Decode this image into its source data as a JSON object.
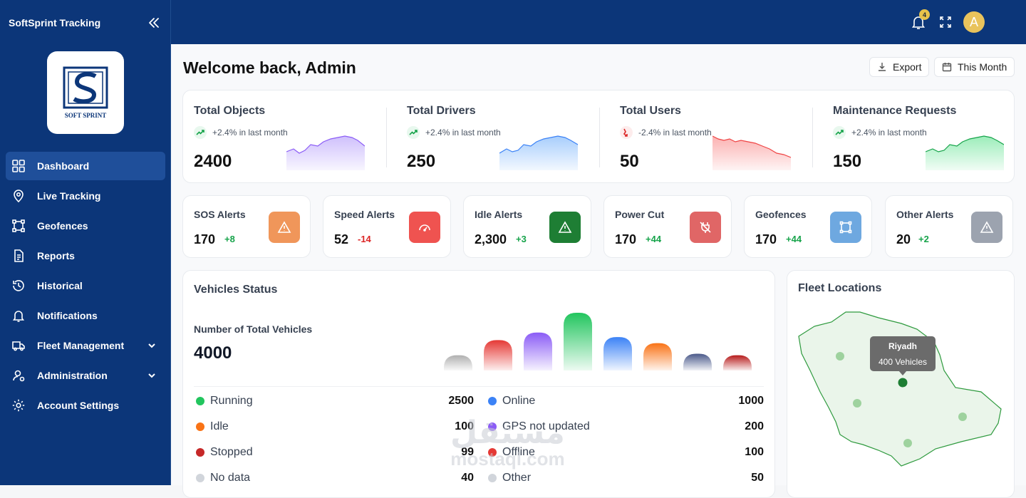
{
  "app": {
    "brand": "SoftSprint Tracking",
    "logo_text": "SOFT SPRINT"
  },
  "sidebar": {
    "items": [
      {
        "label": "Dashboard"
      },
      {
        "label": "Live Tracking"
      },
      {
        "label": "Geofences"
      },
      {
        "label": "Reports"
      },
      {
        "label": "Historical"
      },
      {
        "label": "Notifications"
      },
      {
        "label": "Fleet Management"
      },
      {
        "label": "Administration"
      },
      {
        "label": "Account Settings"
      }
    ]
  },
  "topbar": {
    "notification_count": "4",
    "avatar_initial": "A"
  },
  "header": {
    "welcome": "Welcome back, Admin",
    "export_label": "Export",
    "period_label": "This Month"
  },
  "stats": [
    {
      "title": "Total Objects",
      "trend": "+2.4% in last month",
      "value": "2400",
      "color": "#a78bfa",
      "direction": "up"
    },
    {
      "title": "Total Drivers",
      "trend": "+2.4% in last month",
      "value": "250",
      "color": "#60a5fa",
      "direction": "up"
    },
    {
      "title": "Total Users",
      "trend": "-2.4% in last month",
      "value": "50",
      "color": "#f87171",
      "direction": "down"
    },
    {
      "title": "Maintenance Requests",
      "trend": "+2.4% in last month",
      "value": "150",
      "color": "#4ade80",
      "direction": "up"
    }
  ],
  "alerts": [
    {
      "title": "SOS Alerts",
      "value": "170",
      "delta": "+8",
      "icon": "warning-icon",
      "color": "#f0965a"
    },
    {
      "title": "Speed Alerts",
      "value": "52",
      "delta": "-14",
      "icon": "speedometer-icon",
      "color": "#ef5350"
    },
    {
      "title": "Idle Alerts",
      "value": "2,300",
      "delta": "+3",
      "icon": "warning-icon",
      "color": "#1e7e34"
    },
    {
      "title": "Power Cut",
      "value": "170",
      "delta": "+44",
      "icon": "power-off-icon",
      "color": "#e06666"
    },
    {
      "title": "Geofences",
      "value": "170",
      "delta": "+44",
      "icon": "geofence-icon",
      "color": "#6ea8e0"
    },
    {
      "title": "Other Alerts",
      "value": "20",
      "delta": "+2",
      "icon": "warning-icon",
      "color": "#9ca3af"
    }
  ],
  "vehicles_status": {
    "title": "Vehicles Status",
    "subtitle": "Number of Total Vehicles",
    "total": "4000",
    "legend_left": [
      {
        "label": "Running",
        "value": "2500",
        "color": "#22c55e"
      },
      {
        "label": "Idle",
        "value": "100",
        "color": "#f97316"
      },
      {
        "label": "Stopped",
        "value": "99",
        "color": "#c62828"
      },
      {
        "label": "No data",
        "value": "40",
        "color": "#d1d5db"
      }
    ],
    "legend_right": [
      {
        "label": "Online",
        "value": "1000",
        "color": "#3b82f6"
      },
      {
        "label": "GPS not updated",
        "value": "200",
        "color": "#8b5cf6"
      },
      {
        "label": "Offline",
        "value": "100",
        "color": "#e53935"
      },
      {
        "label": "Other",
        "value": "50",
        "color": "#d1d5db"
      }
    ]
  },
  "chart_data": {
    "type": "bar",
    "categories": [
      "No data",
      "Stopped",
      "GPS not updated",
      "Running",
      "Online",
      "Idle",
      "Offline",
      "Other"
    ],
    "colors": [
      "#b0b0b0",
      "#e53935",
      "#8b5cf6",
      "#22c55e",
      "#3b82f6",
      "#f97316",
      "#4b5a8a",
      "#b71c1c"
    ],
    "values": [
      20,
      40,
      50,
      76,
      44,
      36,
      22,
      20
    ],
    "title": "",
    "xlabel": "",
    "ylabel": ""
  },
  "fleet_locations": {
    "title": "Fleet Locations",
    "tooltip_city": "Riyadh",
    "tooltip_count": "400 Vehicles"
  },
  "watermark": {
    "arabic": "مستقل",
    "latin": "mostaql.com"
  }
}
